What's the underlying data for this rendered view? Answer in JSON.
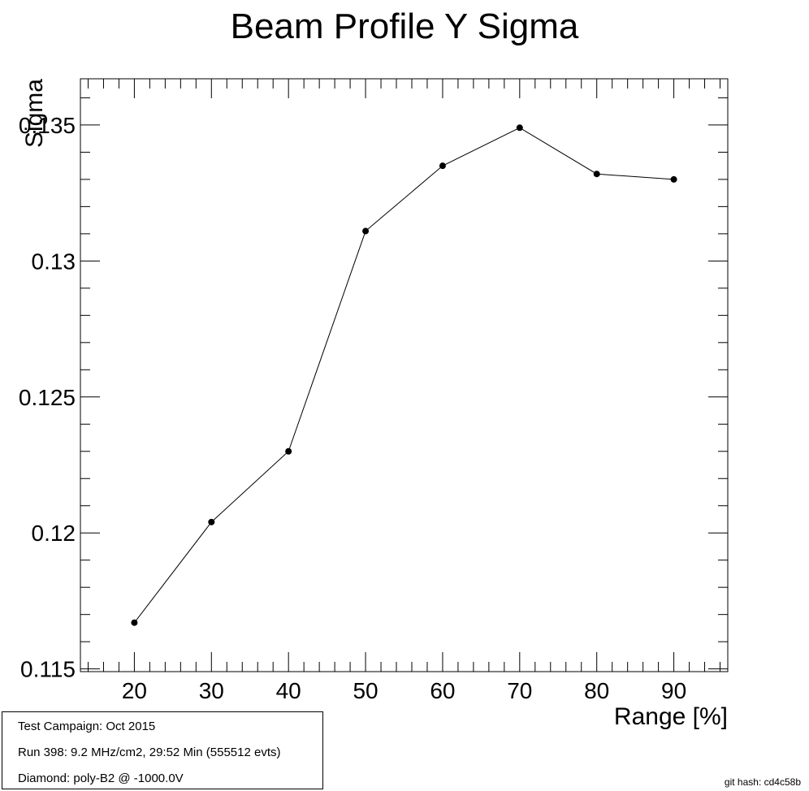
{
  "chart_data": {
    "type": "line",
    "title": "Beam Profile Y Sigma",
    "xlabel": "Range [%]",
    "ylabel": "Sigma",
    "x": [
      20,
      30,
      40,
      50,
      60,
      70,
      80,
      90
    ],
    "y": [
      0.1167,
      0.1204,
      0.123,
      0.1311,
      0.1335,
      0.1349,
      0.1332,
      0.133
    ],
    "xlim": [
      13,
      97
    ],
    "ylim": [
      0.1149,
      0.1367
    ],
    "x_ticks": [
      "20",
      "30",
      "40",
      "50",
      "60",
      "70",
      "80",
      "90"
    ],
    "y_ticks": [
      "0.115",
      "0.12",
      "0.125",
      "0.13",
      "0.135"
    ],
    "grid": false,
    "marker_color": "#000000",
    "line_color": "#000000"
  },
  "info_box": {
    "line1": "Test Campaign: Oct 2015",
    "line2": "Run 398: 9.2 MHz/cm2, 29:52 Min (555512 evts)",
    "line3": "Diamond: poly-B2 @ -1000.0V"
  },
  "footer": {
    "git_hash": "git hash: cd4c58b"
  }
}
